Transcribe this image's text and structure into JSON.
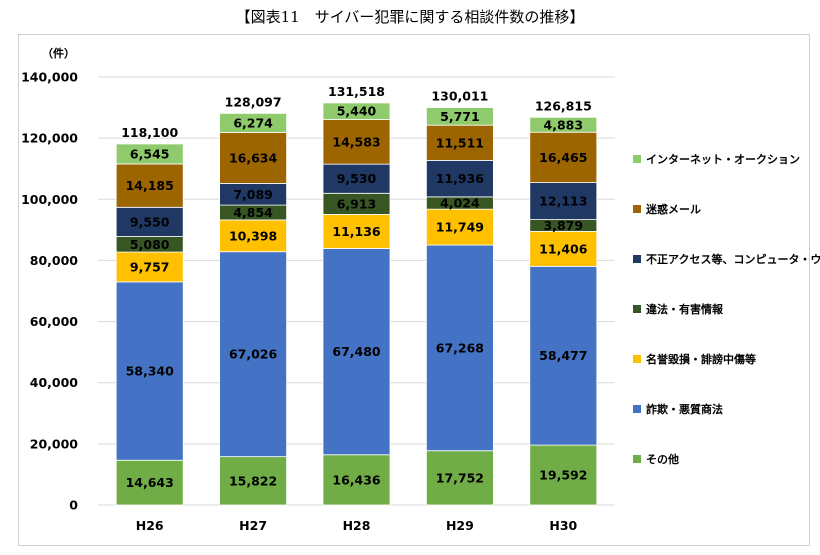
{
  "title": "【図表11　サイバー犯罪に関する相談件数の推移】",
  "chart_data": {
    "type": "bar",
    "stacked": true,
    "unit_label": "（件）",
    "categories": [
      "H26",
      "H27",
      "H28",
      "H29",
      "H30"
    ],
    "ylim": [
      0,
      140000
    ],
    "yticks": [
      0,
      20000,
      40000,
      60000,
      80000,
      100000,
      120000,
      140000
    ],
    "ytick_labels": [
      "0",
      "20,000",
      "40,000",
      "60,000",
      "80,000",
      "100,000",
      "120,000",
      "140,000"
    ],
    "grid": true,
    "legend_position": "right",
    "series": [
      {
        "name": "その他",
        "color": "#70ad47",
        "values": [
          14643,
          15822,
          16436,
          17752,
          19592
        ],
        "labels": [
          "14,643",
          "15,822",
          "16,436",
          "17,752",
          "19,592"
        ]
      },
      {
        "name": "詐欺・悪質商法",
        "color": "#4472c4",
        "values": [
          58340,
          67026,
          67480,
          67268,
          58477
        ],
        "labels": [
          "58,340",
          "67,026",
          "67,480",
          "67,268",
          "58,477"
        ]
      },
      {
        "name": "名誉毀損・誹謗中傷等",
        "color": "#ffc000",
        "values": [
          9757,
          10398,
          11136,
          11749,
          11406
        ],
        "labels": [
          "9,757",
          "10,398",
          "11,136",
          "11,749",
          "11,406"
        ]
      },
      {
        "name": "違法・有害情報",
        "color": "#375623",
        "values": [
          5080,
          4854,
          6913,
          4024,
          3879
        ],
        "labels": [
          "5,080",
          "4,854",
          "6,913",
          "4,024",
          "3,879"
        ]
      },
      {
        "name": "不正アクセス等、コンピュータ・ウイルス",
        "color": "#203864",
        "values": [
          9550,
          7089,
          9530,
          11936,
          12113
        ],
        "labels": [
          "9,550",
          "7,089",
          "9,530",
          "11,936",
          "12,113"
        ]
      },
      {
        "name": "迷惑メール",
        "color": "#9c6500",
        "values": [
          14185,
          16634,
          14583,
          11511,
          16465
        ],
        "labels": [
          "14,185",
          "16,634",
          "14,583",
          "11,511",
          "16,465"
        ]
      },
      {
        "name": "インターネット・オークション",
        "color": "#8fca6c",
        "values": [
          6545,
          6274,
          5440,
          5771,
          4883
        ],
        "labels": [
          "6,545",
          "6,274",
          "5,440",
          "5,771",
          "4,883"
        ]
      }
    ],
    "totals": [
      118100,
      128097,
      131518,
      130011,
      126815
    ],
    "total_labels": [
      "118,100",
      "128,097",
      "131,518",
      "130,011",
      "126,815"
    ]
  }
}
